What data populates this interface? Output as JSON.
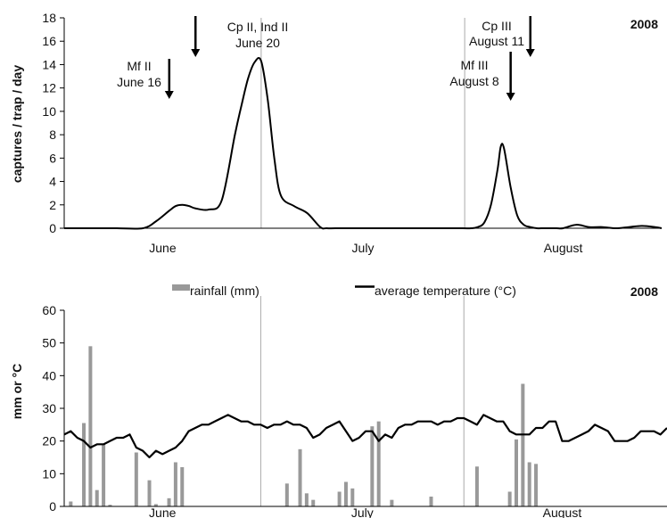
{
  "colors": {
    "line": "#000000",
    "rain_bar": "#999999",
    "month_divider": "#aaaaaa",
    "axis": "#000000"
  },
  "chart_data": [
    {
      "type": "line",
      "year_label": "2008",
      "ylabel": "captures / trap / day",
      "xlabel": "",
      "ylim": [
        0,
        18
      ],
      "yticks": [
        "0",
        "2",
        "4",
        "6",
        "8",
        "10",
        "12",
        "14",
        "16",
        "18"
      ],
      "x_unit": "day index from June 1",
      "xlim": [
        0,
        91
      ],
      "month_labels": [
        {
          "label": "June",
          "x": 15
        },
        {
          "label": "July",
          "x": 45.5
        },
        {
          "label": "August",
          "x": 76
        }
      ],
      "month_dividers": [
        30,
        61
      ],
      "series": [
        {
          "x": [
            0,
            4,
            8,
            12,
            14,
            16,
            17,
            18,
            19,
            20,
            22,
            24,
            26,
            27,
            28,
            29,
            30,
            31,
            32,
            33,
            35,
            37,
            39,
            40,
            42,
            44,
            46,
            48,
            50,
            54,
            58,
            60,
            62,
            63,
            64,
            65,
            66,
            66.5,
            67,
            68,
            69,
            70,
            71,
            72,
            73,
            74,
            75,
            76,
            78,
            80,
            82,
            84,
            86,
            88,
            90,
            91
          ],
          "y": [
            0,
            0,
            0,
            0,
            0.6,
            1.5,
            1.9,
            2.0,
            1.9,
            1.7,
            1.6,
            2.4,
            8.0,
            10.5,
            12.8,
            14.2,
            14.3,
            11.0,
            6.0,
            2.8,
            1.9,
            1.3,
            0.1,
            0,
            0,
            0,
            0,
            0,
            0,
            0,
            0,
            0,
            0,
            0.1,
            0.5,
            2.0,
            5.0,
            7.0,
            6.8,
            3.5,
            1.1,
            0.3,
            0.1,
            0,
            0,
            0,
            0,
            0,
            0.3,
            0.1,
            0.1,
            0,
            0.1,
            0.2,
            0.1,
            0
          ]
        }
      ],
      "annotations": [
        {
          "lines": [
            "Mf II",
            "June 16"
          ],
          "arrow_x": 16
        },
        {
          "lines": [
            "Cp II, Ind II",
            "June 20"
          ],
          "arrow_x": 20
        },
        {
          "lines": [
            "Mf III",
            "August 8"
          ],
          "arrow_x": 68
        },
        {
          "lines": [
            "Cp III",
            "August 11"
          ],
          "arrow_x": 71
        }
      ]
    },
    {
      "type": "bar",
      "year_label": "2008",
      "ylabel": "mm or °C",
      "xlabel": "",
      "ylim": [
        0,
        60
      ],
      "yticks": [
        "0",
        "10",
        "20",
        "30",
        "40",
        "50",
        "60"
      ],
      "x_unit": "day index from June 1",
      "xlim": [
        0,
        92
      ],
      "month_labels": [
        {
          "label": "June",
          "x": 15
        },
        {
          "label": "July",
          "x": 45.5
        },
        {
          "label": "August",
          "x": 76
        }
      ],
      "month_dividers": [
        30,
        61
      ],
      "legend": [
        {
          "name": "rainfall (mm)",
          "kind": "bar"
        },
        {
          "name": "average temperature (°C)",
          "kind": "line"
        }
      ],
      "rainfall": {
        "x": [
          1,
          3,
          4,
          5,
          6,
          7,
          11,
          13,
          14,
          16,
          17,
          18,
          34,
          36,
          37,
          38,
          42,
          43,
          44,
          47,
          48,
          50,
          56,
          63,
          68,
          69,
          70,
          71,
          72
        ],
        "y": [
          1.5,
          25.5,
          49,
          5,
          19,
          0.5,
          16.5,
          8,
          0.7,
          2.5,
          13.5,
          12,
          7,
          17.5,
          4,
          2,
          4.5,
          7.5,
          5.5,
          24.5,
          26,
          2,
          3,
          12.2,
          4.5,
          20.5,
          37.5,
          13.5,
          13
        ]
      },
      "temperature": {
        "x": [
          0,
          1,
          2,
          3,
          4,
          5,
          6,
          7,
          8,
          9,
          10,
          11,
          12,
          13,
          14,
          15,
          16,
          17,
          18,
          19,
          20,
          21,
          22,
          23,
          24,
          25,
          26,
          27,
          28,
          29,
          30,
          31,
          32,
          33,
          34,
          35,
          36,
          37,
          38,
          39,
          40,
          41,
          42,
          43,
          44,
          45,
          46,
          47,
          48,
          49,
          50,
          51,
          52,
          53,
          54,
          55,
          56,
          57,
          58,
          59,
          60,
          61,
          62,
          63,
          64,
          65,
          66,
          67,
          68,
          69,
          70,
          71,
          72,
          73,
          74,
          75,
          76,
          77,
          78,
          79,
          80,
          81,
          82,
          83,
          84,
          85,
          86,
          87,
          88,
          89,
          90,
          91,
          92
        ],
        "y": [
          22,
          23,
          21,
          20,
          18,
          19,
          19,
          20,
          21,
          21,
          22,
          18,
          17,
          15,
          17,
          16,
          17,
          18,
          20,
          23,
          24,
          25,
          25,
          26,
          27,
          28,
          27,
          26,
          26,
          25,
          25,
          24,
          25,
          25,
          26,
          25,
          25,
          24,
          21,
          22,
          24,
          25,
          26,
          23,
          20,
          21,
          23,
          23,
          20,
          22,
          21,
          24,
          25,
          25,
          26,
          26,
          26,
          25,
          26,
          26,
          27,
          27,
          26,
          25,
          28,
          27,
          26,
          26,
          23,
          22,
          22,
          22,
          24,
          24,
          26,
          26,
          20,
          20,
          21,
          22,
          23,
          25,
          24,
          23,
          20,
          20,
          20,
          21,
          23,
          23,
          23,
          22,
          24
        ]
      }
    }
  ]
}
